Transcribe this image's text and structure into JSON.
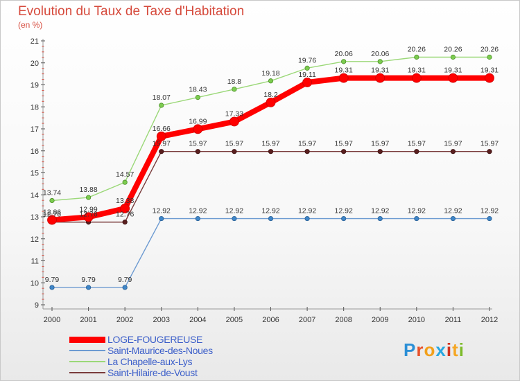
{
  "header": {
    "title": "Evolution du Taux de Taxe d'Habitation",
    "subtitle": "(en %)"
  },
  "logo": {
    "text": "Proxiti",
    "letter_colors": [
      "#2b8fd6",
      "#e8512a",
      "#f2a01b",
      "#27a7e1",
      "#d2331f",
      "#f5a623",
      "#7dbb2a"
    ]
  },
  "chart_data": {
    "type": "line",
    "title": "Evolution du Taux de Taxe d'Habitation",
    "ylabel": "(en %)",
    "xlabel": "",
    "x": [
      "2000",
      "2001",
      "2002",
      "2003",
      "2004",
      "2005",
      "2006",
      "2007",
      "2008",
      "2009",
      "2010",
      "2011",
      "2012"
    ],
    "ylim": [
      9,
      21
    ],
    "yticks": [
      9,
      10,
      11,
      12,
      13,
      14,
      15,
      16,
      17,
      18,
      19,
      20,
      21
    ],
    "grid": false,
    "legend_position": "bottom-left",
    "series": [
      {
        "name": "LOGE-FOUGEREUSE",
        "color": "#ff0000",
        "values": [
          12.86,
          12.99,
          13.38,
          16.66,
          16.99,
          17.33,
          18.2,
          19.11,
          19.31,
          19.31,
          19.31,
          19.31,
          19.31
        ],
        "labels": [
          "12.86",
          "12.99",
          "13.38",
          "16.66",
          "16.99",
          "17.33",
          "18.2",
          "19.11",
          "19.31",
          "19.31",
          "19.31",
          "19.31",
          "19.31"
        ]
      },
      {
        "name": "Saint-Maurice-des-Noues",
        "color": "#6c9ad1",
        "values": [
          9.79,
          9.79,
          9.79,
          12.92,
          12.92,
          12.92,
          12.92,
          12.92,
          12.92,
          12.92,
          12.92,
          12.92,
          12.92
        ],
        "labels": [
          "9.79",
          "9.79",
          "9.79",
          "12.92",
          "12.92",
          "12.92",
          "12.92",
          "12.92",
          "12.92",
          "12.92",
          "12.92",
          "12.92",
          "12.92"
        ]
      },
      {
        "name": "La Chapelle-aux-Lys",
        "color": "#9bd878",
        "values": [
          13.74,
          13.88,
          14.57,
          18.07,
          18.43,
          18.8,
          19.18,
          19.76,
          20.06,
          20.06,
          20.26,
          20.26,
          20.26
        ],
        "labels": [
          "13.74",
          "13.88",
          "14.57",
          "18.07",
          "18.43",
          "18.8",
          "19.18",
          "19.76",
          "20.06",
          "20.06",
          "20.26",
          "20.26",
          "20.26"
        ]
      },
      {
        "name": "Saint-Hilaire-de-Voust",
        "color": "#7a3b3b",
        "values": [
          12.76,
          12.76,
          12.76,
          15.97,
          15.97,
          15.97,
          15.97,
          15.97,
          15.97,
          15.97,
          15.97,
          15.97,
          15.97
        ],
        "labels": [
          "12.76",
          "12.76",
          "12.76",
          "15.97",
          "15.97",
          "15.97",
          "15.97",
          "15.97",
          "15.97",
          "15.97",
          "15.97",
          "15.97",
          "15.97"
        ]
      }
    ]
  }
}
